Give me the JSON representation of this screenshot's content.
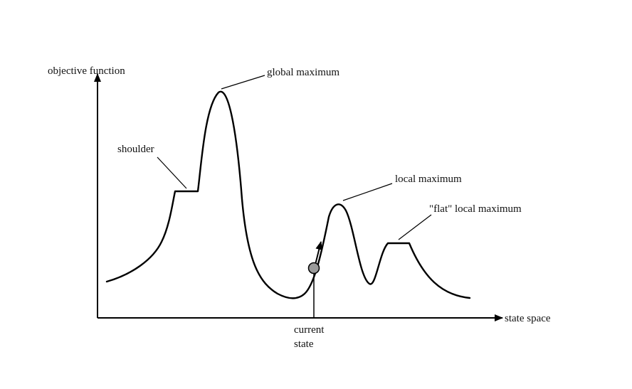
{
  "axes": {
    "y_label": "objective function",
    "x_label": "state space"
  },
  "annotations": {
    "global_maximum": "global maximum",
    "shoulder": "shoulder",
    "local_maximum": "local maximum",
    "flat_local_maximum": "\"flat\" local maximum",
    "current_state_line1": "current",
    "current_state_line2": "state"
  },
  "colors": {
    "line": "#000000",
    "marker_fill": "#9a9a9a"
  }
}
